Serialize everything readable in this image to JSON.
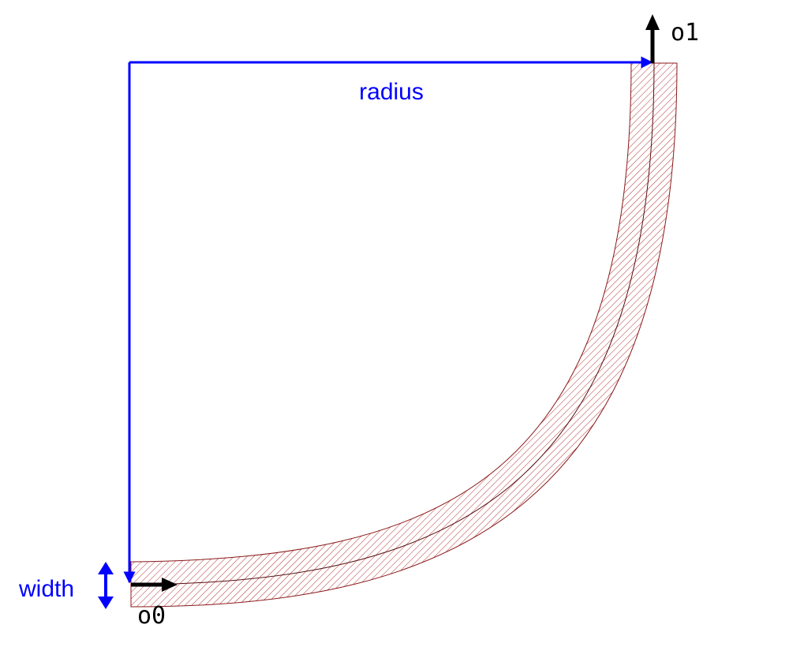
{
  "labels": {
    "radius": "radius",
    "width": "width",
    "port_out": "o1",
    "port_in": "o0"
  },
  "colors": {
    "dimension": "#0000ff",
    "waveguide_stroke": "#8b1a1a",
    "hatch": "#b03030",
    "port_arrow": "#000000",
    "background": "#ffffff"
  },
  "icons": {
    "port_marker": "arrow-icon",
    "width_marker": "double-arrow-icon"
  }
}
